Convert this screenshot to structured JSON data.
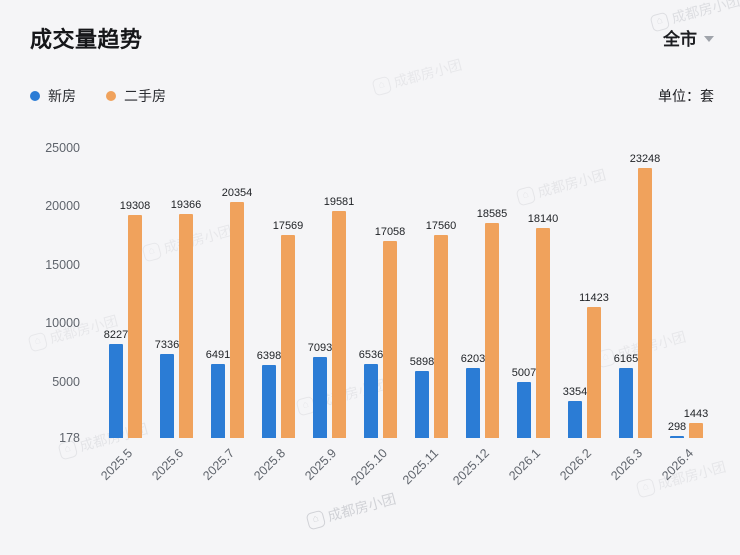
{
  "header": {
    "title": "成交量趋势",
    "region": "全市",
    "unit_label": "单位：套"
  },
  "legend": [
    {
      "label": "新房",
      "color": "#2b7cd5"
    },
    {
      "label": "二手房",
      "color": "#f0a25c"
    }
  ],
  "watermark": {
    "text": "成都房小团"
  },
  "chart_data": {
    "type": "bar",
    "title": "成交量趋势",
    "unit": "套",
    "categories": [
      "2025.5",
      "2025.6",
      "2025.7",
      "2025.8",
      "2025.9",
      "2025.10",
      "2025.11",
      "2025.12",
      "2026.1",
      "2026.2",
      "2026.3",
      "2026.4"
    ],
    "series": [
      {
        "name": "新房",
        "color": "#2b7cd5",
        "values": [
          8227,
          7336,
          6491,
          6398,
          7093,
          6536,
          5898,
          6203,
          5007,
          3354,
          6165,
          298
        ]
      },
      {
        "name": "二手房",
        "color": "#f0a25c",
        "values": [
          19308,
          19366,
          20354,
          17569,
          19581,
          17058,
          17560,
          18585,
          18140,
          11423,
          23248,
          1443
        ]
      }
    ],
    "yticks": [
      178,
      5000,
      10000,
      15000,
      20000,
      25000
    ],
    "ylim": [
      178,
      25000
    ],
    "grid": false,
    "legend_position": "top-left"
  }
}
